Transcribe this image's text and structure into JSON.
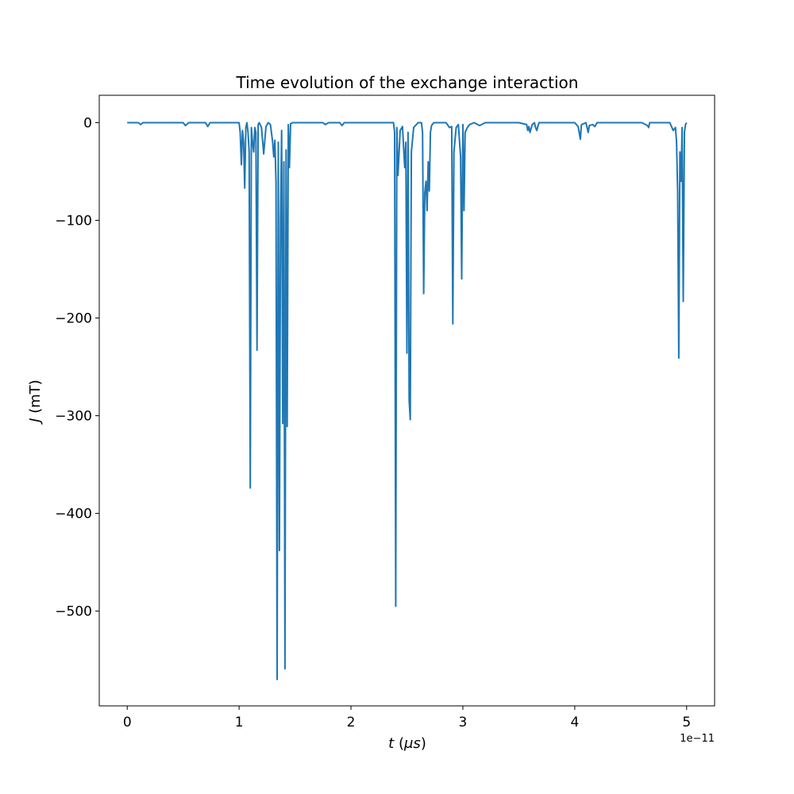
{
  "chart_data": {
    "type": "line",
    "title": "Time evolution of the exchange interaction",
    "xlabel": "t (μs)",
    "xlabel_parts": {
      "var": "t",
      "rest": " (",
      "unit_var": "μs",
      "close": ")"
    },
    "ylabel": "J (mT)",
    "ylabel_parts": {
      "var": "J",
      "rest": " (mT)"
    },
    "x_offset_text": "1e−11",
    "xlim": [
      -0.25,
      5.25
    ],
    "ylim": [
      -597,
      28
    ],
    "x_ticks": [
      0,
      1,
      2,
      3,
      4,
      5
    ],
    "x_tick_labels": [
      "0",
      "1",
      "2",
      "3",
      "4",
      "5"
    ],
    "y_ticks": [
      0,
      -100,
      -200,
      -300,
      -400,
      -500
    ],
    "y_tick_labels": [
      "0",
      "−100",
      "−200",
      "−300",
      "−400",
      "−500"
    ],
    "grid": false,
    "series": [
      {
        "color": "#1f77b4",
        "x": [
          0,
          0.1,
          0.12,
          0.14,
          0.3,
          0.5,
          0.52,
          0.55,
          0.7,
          0.72,
          0.74,
          1.0,
          1.01,
          1.02,
          1.03,
          1.04,
          1.05,
          1.06,
          1.07,
          1.08,
          1.09,
          1.1,
          1.11,
          1.12,
          1.13,
          1.14,
          1.15,
          1.16,
          1.17,
          1.18,
          1.2,
          1.22,
          1.24,
          1.26,
          1.28,
          1.3,
          1.31,
          1.32,
          1.33,
          1.34,
          1.35,
          1.36,
          1.37,
          1.38,
          1.39,
          1.4,
          1.41,
          1.42,
          1.43,
          1.44,
          1.45,
          1.46,
          1.48,
          1.5,
          1.75,
          1.77,
          1.8,
          1.9,
          1.92,
          1.94,
          2.3,
          2.38,
          2.39,
          2.4,
          2.41,
          2.42,
          2.44,
          2.46,
          2.48,
          2.49,
          2.5,
          2.51,
          2.52,
          2.53,
          2.54,
          2.56,
          2.6,
          2.63,
          2.64,
          2.65,
          2.66,
          2.67,
          2.68,
          2.69,
          2.7,
          2.71,
          2.72,
          2.74,
          2.8,
          2.85,
          2.88,
          2.9,
          2.91,
          2.92,
          2.94,
          2.96,
          2.98,
          2.99,
          3.0,
          3.01,
          3.02,
          3.04,
          3.06,
          3.1,
          3.15,
          3.2,
          3.5,
          3.57,
          3.58,
          3.59,
          3.6,
          3.62,
          3.64,
          3.65,
          3.66,
          3.68,
          3.7,
          4.0,
          4.03,
          4.04,
          4.05,
          4.06,
          4.1,
          4.11,
          4.12,
          4.13,
          4.16,
          4.18,
          4.2,
          4.6,
          4.65,
          4.66,
          4.67,
          4.7,
          4.85,
          4.88,
          4.9,
          4.91,
          4.92,
          4.93,
          4.94,
          4.95,
          4.96,
          4.97,
          4.98,
          4.99,
          5.0
        ],
        "y": [
          0,
          0,
          -2,
          0,
          0,
          0,
          -3,
          0,
          0,
          -4,
          0,
          0,
          -10,
          -43,
          -8,
          -20,
          -67,
          -5,
          0,
          -10,
          -30,
          -374,
          -5,
          -20,
          -30,
          -5,
          -10,
          -233,
          -2,
          0,
          -5,
          -32,
          -4,
          0,
          -2,
          -20,
          -35,
          -18,
          -60,
          -570,
          -20,
          -438,
          -100,
          -8,
          -308,
          -40,
          -559,
          -28,
          -311,
          -2,
          -46,
          -1,
          0,
          0,
          0,
          -2,
          0,
          0,
          -3,
          0,
          0,
          0,
          -10,
          -495,
          -5,
          -54,
          -8,
          -4,
          -46,
          -20,
          -236,
          -10,
          -284,
          -304,
          -30,
          -5,
          0,
          0,
          -10,
          -175,
          -72,
          -60,
          -90,
          -40,
          -70,
          -10,
          -3,
          0,
          0,
          0,
          -5,
          -4,
          -206,
          -30,
          -5,
          -2,
          -35,
          -160,
          -2,
          -90,
          -10,
          -5,
          -2,
          0,
          -3,
          0,
          0,
          -2,
          -8,
          -4,
          -10,
          -2,
          0,
          -5,
          -8,
          0,
          0,
          0,
          -4,
          -10,
          -17,
          -2,
          0,
          -5,
          -10,
          -3,
          -2,
          -4,
          0,
          0,
          -3,
          -5,
          0,
          0,
          0,
          -8,
          -5,
          -20,
          -72,
          -241,
          -30,
          -60,
          -5,
          -183,
          -10,
          -2,
          0
        ]
      }
    ]
  }
}
